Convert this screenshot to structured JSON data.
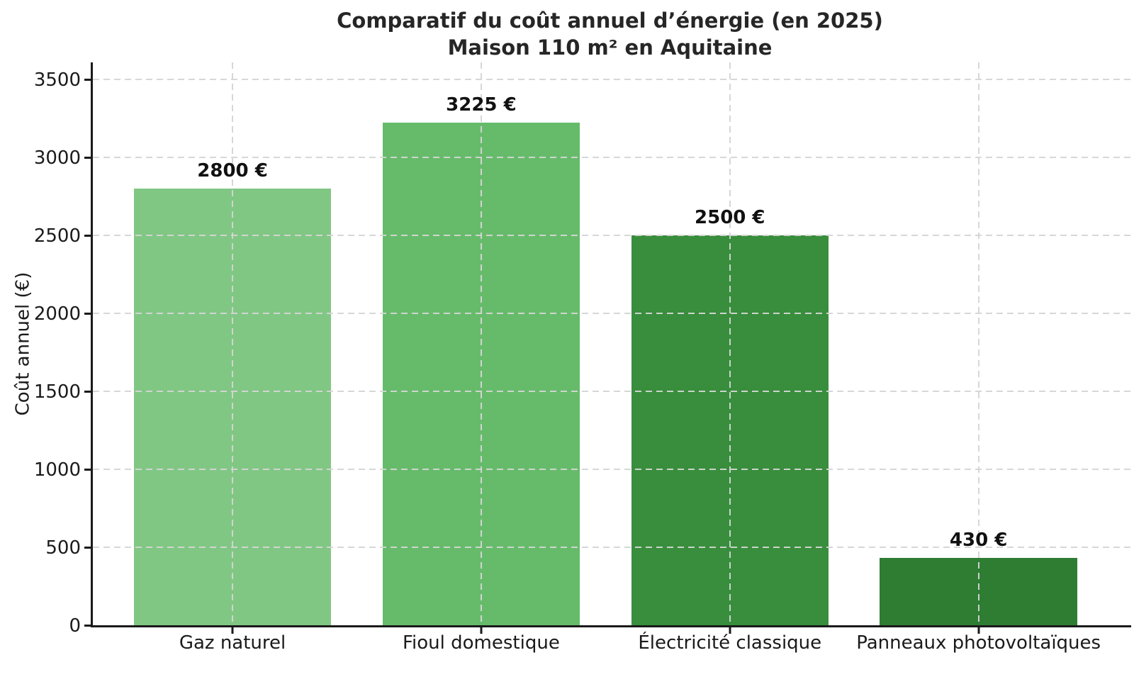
{
  "chart_data": {
    "type": "bar",
    "title_line1": "Comparatif du coût annuel d’énergie (en 2025)",
    "title_line2": "Maison 110 m² en Aquitaine",
    "ylabel": "Coût annuel (€)",
    "xlabel": "",
    "categories": [
      "Gaz naturel",
      "Fioul domestique",
      "Électricité classique",
      "Panneaux photovoltaïques"
    ],
    "values": [
      2800,
      3225,
      2500,
      430
    ],
    "value_labels": [
      "2800 €",
      "3225 €",
      "2500 €",
      "430 €"
    ],
    "bar_colors": [
      "#81c784",
      "#66bb6a",
      "#388e3c",
      "#2e7d32"
    ],
    "yticks": [
      0,
      500,
      1000,
      1500,
      2000,
      2500,
      3000,
      3500
    ],
    "ytick_labels": [
      "0",
      "500",
      "1000",
      "1500",
      "2000",
      "2500",
      "3000",
      "3500"
    ],
    "ylim": [
      0,
      3610
    ],
    "grid": "dashed light-gray, horizontal at y ticks and vertical at bar centers, drawn over bars",
    "legend": "none",
    "background_color": "#ffffff",
    "axis_color": "#1a1a1a",
    "grid_color": "#d5d5d5",
    "text_color": "#262626"
  }
}
